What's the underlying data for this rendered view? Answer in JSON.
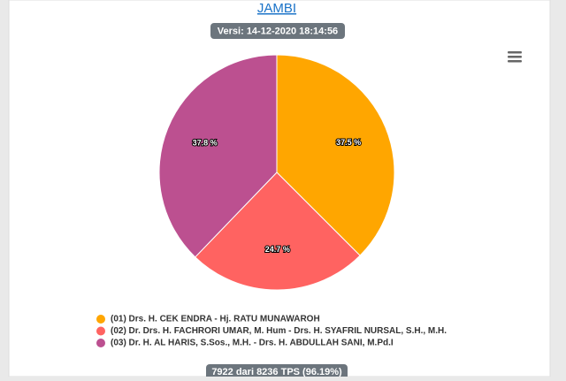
{
  "chart_data": {
    "type": "pie",
    "title": "JAMBI",
    "subtitle": "Versi: 14-12-2020 18:14:56",
    "categories": [
      "(01) Drs. H. CEK ENDRA - Hj. RATU MUNAWAROH",
      "(02) Dr. Drs. H. FACHRORI UMAR, M. Hum - Drs. H. SYAFRIL NURSAL, S.H., M.H.",
      "(03) Dr. H. AL HARIS, S.Sos., M.H. - Drs. H. ABDULLAH SANI, M.Pd.I"
    ],
    "values": [
      37.5,
      24.7,
      37.8
    ],
    "value_labels": [
      "37.5 %",
      "24.7 %",
      "37.8 %"
    ],
    "colors": [
      "#ffa600",
      "#ff6361",
      "#bc5090"
    ],
    "caption": "7922 dari 8236 TPS (96.19%)"
  }
}
